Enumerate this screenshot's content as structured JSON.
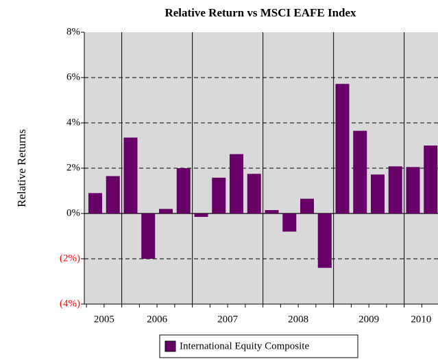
{
  "chart_data": {
    "type": "bar",
    "title": "Relative Return vs MSCI EAFE Index",
    "y_label": "Relative Returns",
    "categories": [
      "2005",
      "2005",
      "2006",
      "2006",
      "2006",
      "2006",
      "2007",
      "2007",
      "2007",
      "2007",
      "2008",
      "2008",
      "2008",
      "2008",
      "2009",
      "2009",
      "2009",
      "2009",
      "2010",
      "2010"
    ],
    "series": [
      {
        "name": "International Equity Composite",
        "color": "#660066",
        "values": [
          0.9,
          1.65,
          3.35,
          -2.0,
          0.2,
          2.0,
          -0.15,
          1.58,
          2.62,
          1.75,
          0.15,
          -0.8,
          0.65,
          -2.4,
          5.72,
          3.65,
          1.72,
          2.08,
          2.05,
          3.0
        ]
      }
    ],
    "ylim": [
      -4,
      8
    ],
    "yticks": [
      {
        "value": -4,
        "label": "(4%)"
      },
      {
        "value": -2,
        "label": "(2%)"
      },
      {
        "value": 0,
        "label": "0%"
      },
      {
        "value": 2,
        "label": "2%"
      },
      {
        "value": 4,
        "label": "4%"
      },
      {
        "value": 6,
        "label": "6%"
      },
      {
        "value": 8,
        "label": "8%"
      }
    ],
    "negative_tick_color": "#ff0000",
    "grid": true,
    "legend": "bottom"
  }
}
